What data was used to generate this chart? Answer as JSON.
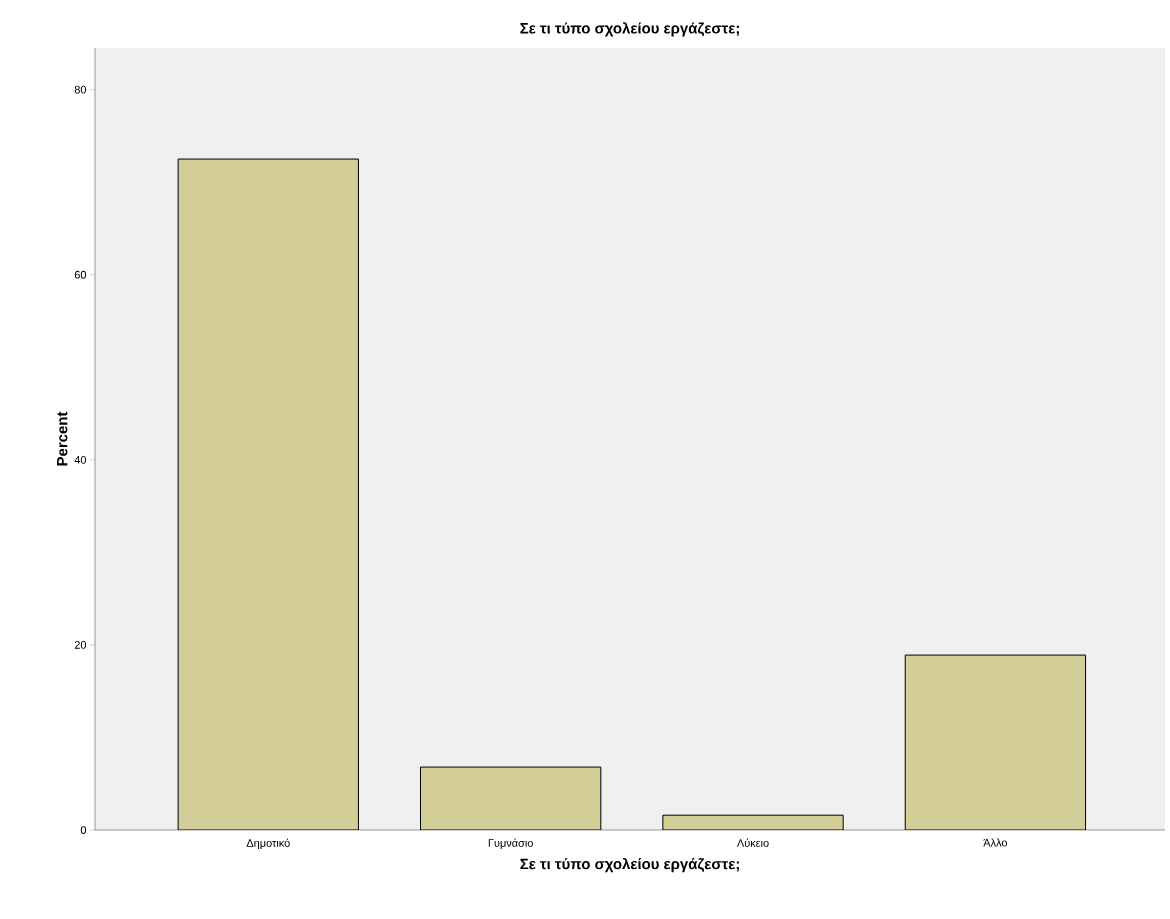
{
  "chart_data": {
    "type": "bar",
    "title": "Σε τι τύπο σχολείου εργάζεστε;",
    "xlabel": "Σε τι τύπο σχολείου εργάζεστε;",
    "ylabel": "Percent",
    "categories": [
      "Δημοτικό",
      "Γυμνάσιο",
      "Λύκειο",
      "Άλλο"
    ],
    "values": [
      72.5,
      6.8,
      1.6,
      18.9
    ],
    "color": "#d3ce97",
    "ylim": [
      0,
      84.5
    ],
    "yticks": [
      0,
      20,
      40,
      60,
      80
    ],
    "grid": false
  }
}
